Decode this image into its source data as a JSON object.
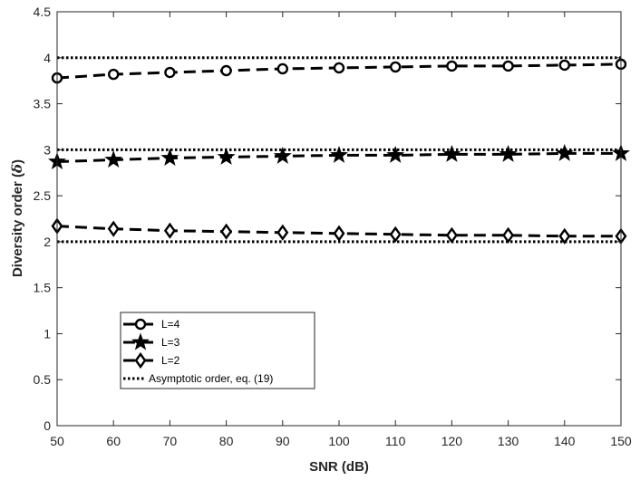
{
  "chart_data": {
    "type": "line",
    "xlabel": "SNR (dB)",
    "ylabel_prefix": "Diversity order (",
    "ylabel_symbol": "δ",
    "ylabel_suffix": ")",
    "xlim": [
      50,
      150
    ],
    "ylim": [
      0,
      4.5
    ],
    "xticks": [
      "50",
      "60",
      "70",
      "80",
      "90",
      "100",
      "110",
      "120",
      "130",
      "140",
      "150"
    ],
    "yticks": [
      "0",
      "0.5",
      "1",
      "1.5",
      "2",
      "2.5",
      "3",
      "3.5",
      "4",
      "4.5"
    ],
    "grid": false,
    "legend_position": "lower-left",
    "x": [
      50,
      60,
      70,
      80,
      90,
      100,
      110,
      120,
      130,
      140,
      150
    ],
    "series": [
      {
        "name": "L=4",
        "marker": "circle",
        "line_style": "dashed",
        "values": [
          3.78,
          3.82,
          3.84,
          3.86,
          3.88,
          3.89,
          3.9,
          3.91,
          3.91,
          3.92,
          3.93
        ]
      },
      {
        "name": "L=3",
        "marker": "star",
        "line_style": "dashed",
        "values": [
          2.87,
          2.89,
          2.91,
          2.92,
          2.93,
          2.94,
          2.94,
          2.95,
          2.95,
          2.96,
          2.96
        ]
      },
      {
        "name": "L=2",
        "marker": "diamond",
        "line_style": "dashed",
        "values": [
          2.17,
          2.14,
          2.12,
          2.11,
          2.1,
          2.09,
          2.08,
          2.07,
          2.07,
          2.06,
          2.06
        ]
      },
      {
        "name": "Asymptotic order, eq. (19)",
        "marker": "none",
        "line_style": "dotted",
        "levels": [
          4,
          3,
          2
        ]
      }
    ],
    "colors": {
      "axes": "#262626",
      "series": "#000000",
      "background": "#ffffff"
    }
  }
}
